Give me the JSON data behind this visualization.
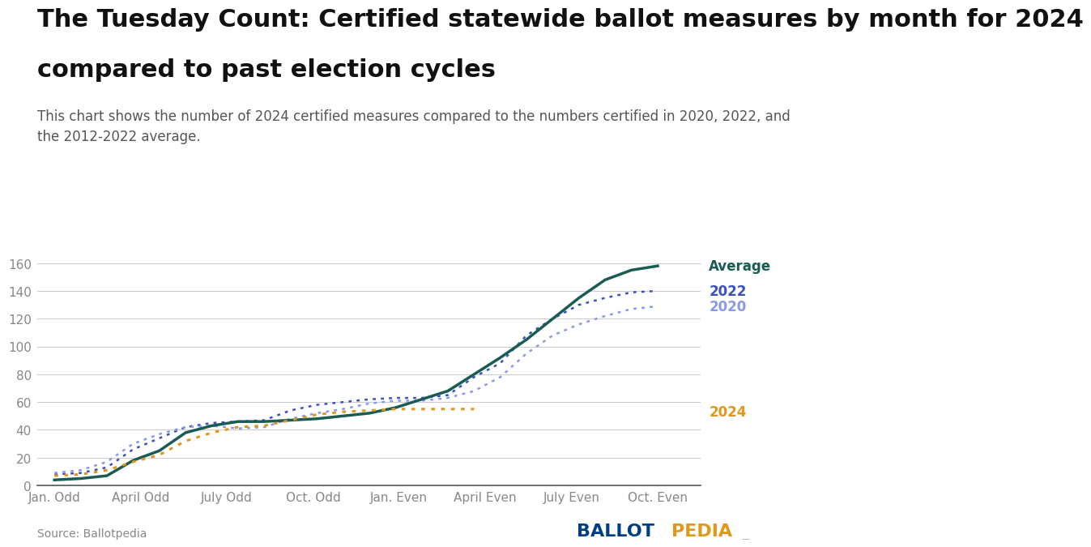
{
  "title_line1": "The Tuesday Count: Certified statewide ballot measures by month for 2024",
  "title_line2": "compared to past election cycles",
  "subtitle": "This chart shows the number of 2024 certified measures compared to the numbers certified in 2020, 2022, and\nthe 2012-2022 average.",
  "source": "Source: Ballotpedia",
  "x_labels": [
    "Jan. Odd",
    "April Odd",
    "July Odd",
    "Oct. Odd",
    "Jan. Even",
    "April Even",
    "July Even",
    "Oct. Even"
  ],
  "ylim": [
    0,
    170
  ],
  "yticks": [
    0,
    20,
    40,
    60,
    80,
    100,
    120,
    140,
    160
  ],
  "average": [
    4,
    5,
    7,
    18,
    25,
    38,
    43,
    46,
    46,
    47,
    48,
    50,
    52,
    56,
    62,
    68,
    80,
    92,
    105,
    120,
    135,
    148,
    155,
    158
  ],
  "y2022": [
    8,
    9,
    13,
    26,
    34,
    42,
    45,
    46,
    47,
    54,
    58,
    60,
    62,
    63,
    63,
    65,
    78,
    88,
    108,
    120,
    130,
    135,
    139,
    140
  ],
  "y2020": [
    9,
    11,
    17,
    30,
    37,
    42,
    43,
    41,
    42,
    48,
    52,
    55,
    59,
    61,
    61,
    63,
    68,
    78,
    95,
    108,
    116,
    122,
    127,
    129
  ],
  "y2024": [
    7,
    8,
    11,
    17,
    22,
    32,
    38,
    42,
    43,
    47,
    51,
    53,
    54,
    55,
    55,
    55,
    55,
    null,
    null,
    null,
    null,
    null,
    null,
    null
  ],
  "avg_color": "#1a5c54",
  "color_2022": "#3a4fc4",
  "color_2020": "#8899ee",
  "color_2024": "#e0971a",
  "bg_color": "#ffffff",
  "grid_color": "#cccccc",
  "title_fontsize": 22,
  "subtitle_fontsize": 12,
  "axis_fontsize": 11,
  "label_fontsize": 12,
  "ballotpedia_blue": "#003f87",
  "ballotpedia_orange": "#e0971a"
}
